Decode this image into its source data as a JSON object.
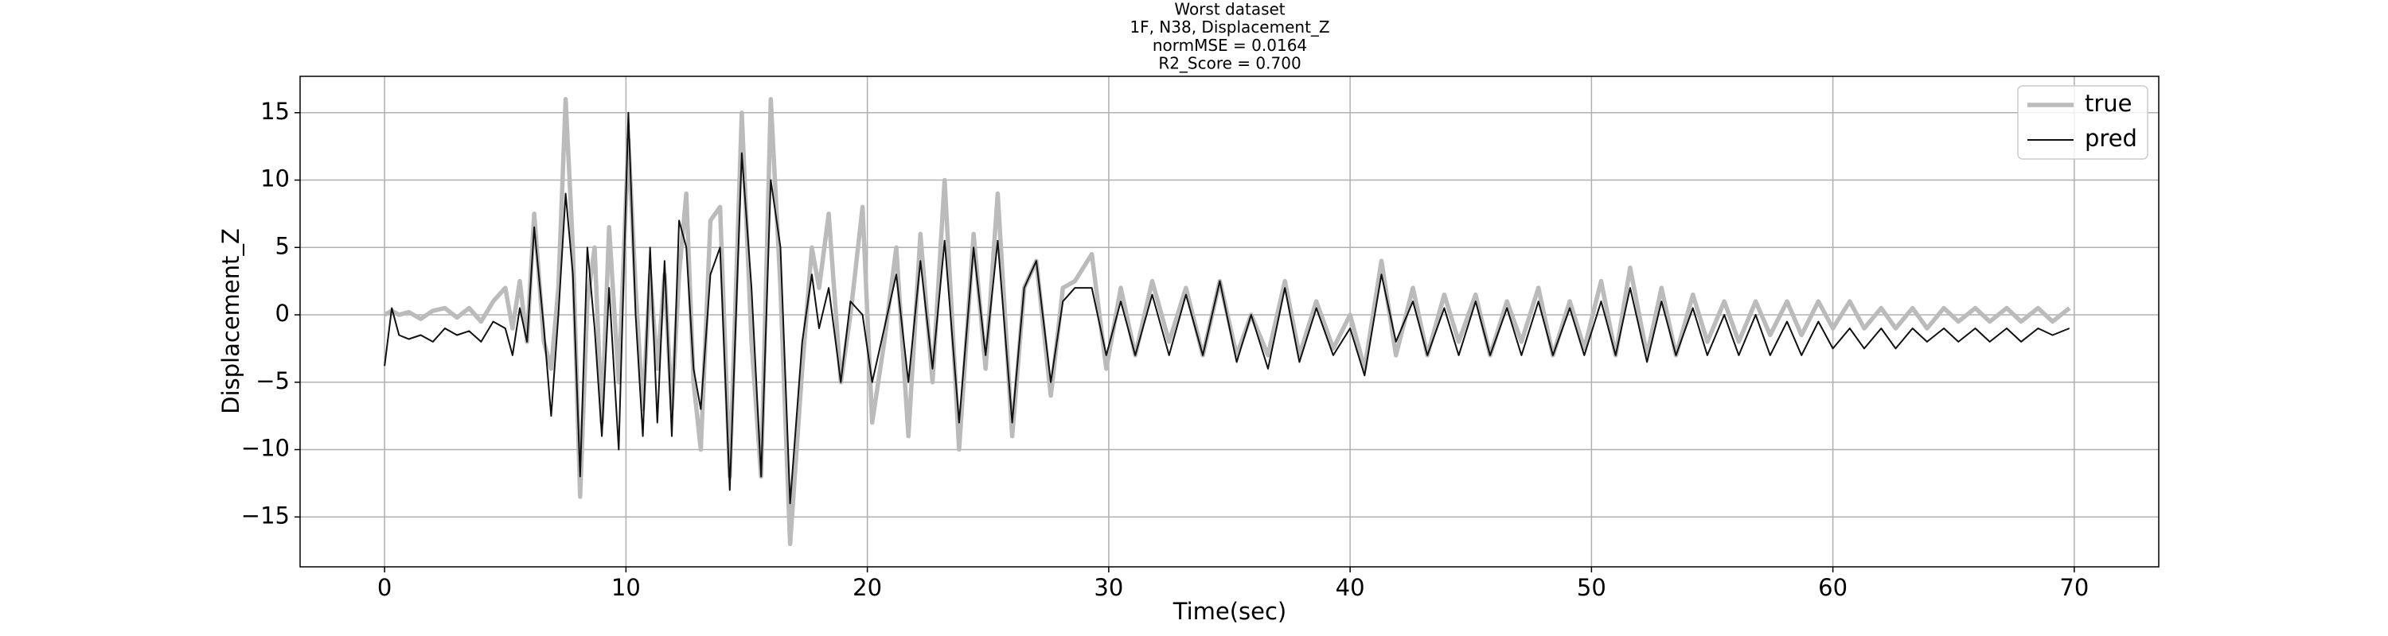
{
  "chart_data": {
    "type": "line",
    "title": [
      "Worst dataset",
      "1F, N38, Displacement_Z",
      "normMSE = 0.0164",
      "R2_Score = 0.700"
    ],
    "xlabel": "Time(sec)",
    "ylabel": "Displacement_Z",
    "xlim": [
      -3.5,
      73.5
    ],
    "ylim": [
      -18.7,
      17.7
    ],
    "xticks": [
      0,
      10,
      20,
      30,
      40,
      50,
      60,
      70
    ],
    "yticks": [
      {
        "value": -15,
        "label": "−15"
      },
      {
        "value": -10,
        "label": "−10"
      },
      {
        "value": -5,
        "label": "−5"
      },
      0,
      5,
      10,
      15
    ],
    "grid": true,
    "legend": "upper right",
    "x": [
      0,
      0.3,
      0.6,
      1.0,
      1.5,
      2.0,
      2.5,
      3.0,
      3.5,
      4.0,
      4.5,
      5.0,
      5.3,
      5.6,
      5.9,
      6.2,
      6.6,
      6.9,
      7.2,
      7.5,
      7.8,
      8.1,
      8.4,
      8.7,
      9.0,
      9.3,
      9.7,
      10.1,
      10.4,
      10.7,
      11.0,
      11.3,
      11.6,
      11.9,
      12.2,
      12.5,
      12.8,
      13.1,
      13.5,
      13.9,
      14.3,
      14.8,
      15.2,
      15.6,
      16.0,
      16.4,
      16.8,
      17.3,
      17.7,
      18.0,
      18.4,
      18.9,
      19.3,
      19.8,
      20.2,
      20.7,
      21.2,
      21.7,
      22.2,
      22.7,
      23.2,
      23.8,
      24.4,
      24.9,
      25.4,
      26.0,
      26.5,
      27.0,
      27.6,
      28.1,
      28.6,
      29.3,
      29.9,
      30.5,
      31.1,
      31.8,
      32.5,
      33.2,
      33.9,
      34.6,
      35.3,
      35.9,
      36.6,
      37.3,
      37.9,
      38.6,
      39.3,
      40.0,
      40.6,
      41.3,
      41.9,
      42.6,
      43.2,
      43.9,
      44.5,
      45.2,
      45.8,
      46.5,
      47.1,
      47.8,
      48.4,
      49.1,
      49.7,
      50.4,
      51.0,
      51.6,
      52.3,
      52.9,
      53.5,
      54.2,
      54.8,
      55.5,
      56.1,
      56.8,
      57.4,
      58.1,
      58.7,
      59.4,
      60.0,
      60.7,
      61.3,
      62.0,
      62.6,
      63.3,
      63.9,
      64.6,
      65.2,
      65.9,
      66.5,
      67.2,
      67.8,
      68.5,
      69.1,
      69.8
    ],
    "series": [
      {
        "name": "true",
        "color": "#bbbbbb",
        "values": [
          0,
          0.3,
          0,
          0.2,
          -0.3,
          0.3,
          0.5,
          -0.2,
          0.5,
          -0.5,
          1,
          2,
          -1,
          2.5,
          -2,
          7.5,
          -2,
          -4,
          2,
          16,
          5,
          -13.5,
          1,
          5,
          -8,
          6.5,
          -5,
          13,
          2,
          -7,
          3,
          -4,
          3,
          -7,
          3,
          9,
          -5,
          -10,
          7,
          8,
          -12,
          15,
          -2,
          -12,
          16,
          2,
          -17,
          -4,
          5,
          2,
          7.5,
          -5,
          0,
          8,
          -8,
          -2,
          5,
          -9,
          6,
          -5,
          10,
          -10,
          6,
          -4,
          9,
          -9,
          2,
          4,
          -6,
          2,
          2.5,
          4.5,
          -4,
          2,
          -3,
          2.5,
          -2,
          2,
          -3,
          2.5,
          -3,
          0,
          -3,
          2.5,
          -3,
          1,
          -2.5,
          0,
          -4,
          4,
          -3,
          2,
          -3,
          1.5,
          -2,
          1.5,
          -3,
          1,
          -2,
          2,
          -3,
          1,
          -2.5,
          2.5,
          -3,
          3.5,
          -3,
          2,
          -3,
          1.5,
          -2,
          1,
          -2,
          1,
          -1.5,
          1,
          -1.5,
          1,
          -1,
          1,
          -1,
          0.5,
          -1,
          0.5,
          -1,
          0.5,
          -0.5,
          0.5,
          -0.5,
          0.5,
          -0.5,
          0.5,
          -0.5,
          0.5
        ]
      },
      {
        "name": "pred",
        "color": "#111111",
        "values": [
          -3.8,
          0.5,
          -1.5,
          -1.8,
          -1.5,
          -2,
          -1,
          -1.5,
          -1.2,
          -2,
          -0.5,
          -1,
          -3,
          0.5,
          -2,
          6.5,
          -1,
          -7.5,
          0,
          9,
          3,
          -12,
          5,
          -1,
          -9,
          2,
          -10,
          15,
          0,
          -9,
          5,
          -8,
          4,
          -9,
          7,
          5,
          -4,
          -7,
          3,
          5,
          -13,
          12,
          2,
          -12,
          10,
          5,
          -14,
          -2,
          3,
          -1,
          2,
          -5,
          1,
          0,
          -5,
          -1,
          3,
          -5,
          4,
          -4,
          5.5,
          -8,
          5,
          -3,
          5.5,
          -8,
          2,
          4,
          -5,
          1,
          2,
          2,
          -3,
          1,
          -3,
          1.5,
          -3,
          1.5,
          -3,
          2.5,
          -3.5,
          0,
          -4,
          2,
          -3.5,
          0.5,
          -3,
          -1,
          -4.5,
          3,
          -2,
          1,
          -3,
          0.5,
          -3,
          1,
          -3,
          0.5,
          -3,
          1,
          -3,
          0.5,
          -3,
          1,
          -3,
          2,
          -3.5,
          1,
          -3,
          0.5,
          -3,
          0,
          -3,
          0,
          -3,
          -0.5,
          -3,
          -0.5,
          -2.5,
          -1,
          -2.5,
          -1,
          -2.5,
          -1,
          -2,
          -1,
          -2,
          -1,
          -2,
          -1,
          -2,
          -1,
          -1.5,
          -1
        ]
      }
    ]
  }
}
